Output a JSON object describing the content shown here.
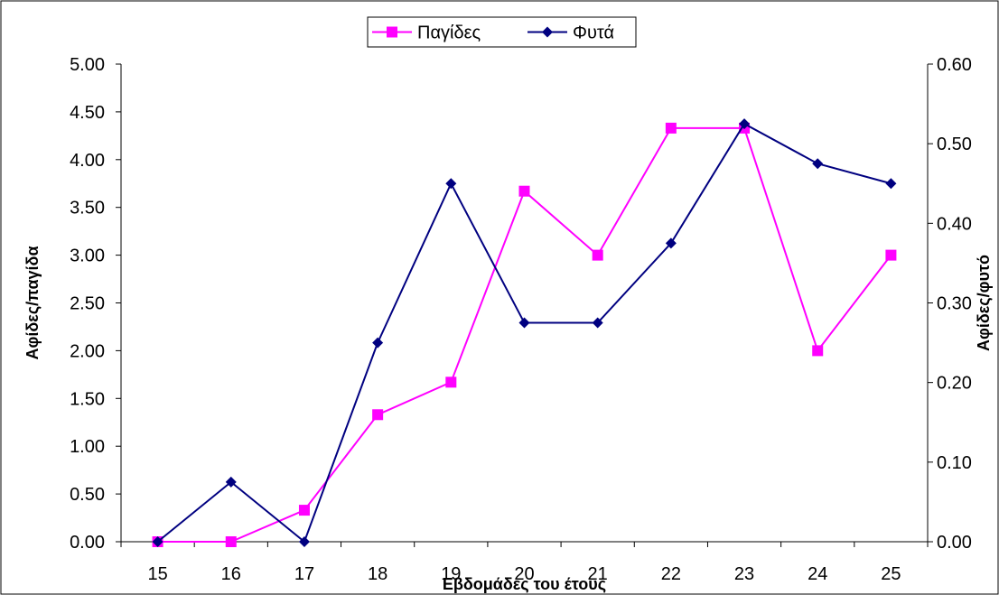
{
  "chart_data": {
    "type": "line",
    "categories": [
      "15",
      "16",
      "17",
      "18",
      "19",
      "20",
      "21",
      "22",
      "23",
      "24",
      "25"
    ],
    "xlabel": "Εβδομάδες του έτους",
    "ylabel": "Αφίδες/παγίδα",
    "y2label": "Αφίδες/φυτό",
    "ylim": [
      0,
      5
    ],
    "yticks": [
      "0.00",
      "0.50",
      "1.00",
      "1.50",
      "2.00",
      "2.50",
      "3.00",
      "3.50",
      "4.00",
      "4.50",
      "5.00"
    ],
    "y2lim": [
      0,
      0.6
    ],
    "y2ticks": [
      "0.00",
      "0.10",
      "0.20",
      "0.30",
      "0.40",
      "0.50",
      "0.60"
    ],
    "grid": false,
    "legend_position": "top-center",
    "series": [
      {
        "name": "Παγίδες",
        "axis": "left",
        "marker": "square",
        "color": "#ff00ff",
        "values": [
          0.0,
          0.0,
          0.33,
          1.33,
          1.67,
          3.67,
          3.0,
          4.33,
          4.33,
          2.0,
          3.0
        ]
      },
      {
        "name": "Φυτά",
        "axis": "right",
        "marker": "diamond",
        "color": "#000080",
        "values": [
          0.0,
          0.075,
          0.0,
          0.25,
          0.45,
          0.275,
          0.275,
          0.375,
          0.525,
          0.475,
          0.45
        ]
      }
    ]
  }
}
